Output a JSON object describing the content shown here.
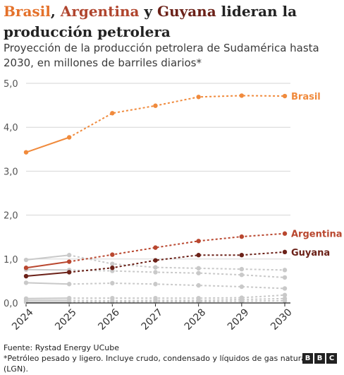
{
  "headline": {
    "parts": [
      {
        "text": "Brasil",
        "color": "#e4712a"
      },
      {
        "text": ", ",
        "color": "#222222"
      },
      {
        "text": "Argentina",
        "color": "#b0452e"
      },
      {
        "text": " y ",
        "color": "#222222"
      },
      {
        "text": "Guyana",
        "color": "#6b2118"
      },
      {
        "text": " lideran la producción petrolera",
        "color": "#222222"
      }
    ]
  },
  "subtitle": "Proyección de la producción petrolera de Sudamérica hasta 2030, en millones de barriles diarios*",
  "footer": {
    "source": "Fuente: Rystad Energy UCube",
    "note": "*Petróleo pesado y ligero. Incluye crudo, condensado y líquidos de gas natural (LGN).",
    "logo_letters": [
      "B",
      "B",
      "C"
    ]
  },
  "colors": {
    "brasil": "#f08a3c",
    "argentina": "#b9472f",
    "guyana": "#6b2118",
    "others": "#c9c9c9",
    "grid": "#d6d6d6",
    "axis": "#222222"
  },
  "chart_data": {
    "type": "line",
    "x": [
      2024,
      2025,
      2026,
      2027,
      2028,
      2029,
      2030
    ],
    "xlabel": "",
    "ylabel": "",
    "ylim": [
      0,
      5
    ],
    "yticks": [
      0,
      1,
      2,
      3,
      4,
      5
    ],
    "ytick_labels": [
      "0,0",
      "1,0",
      "2,0",
      "3,0",
      "4,0",
      "5,0"
    ],
    "xtick_labels": [
      "2024",
      "2025",
      "2026",
      "2027",
      "2028",
      "2029",
      "2030"
    ],
    "solid_until": 2025,
    "grid": true,
    "series": [
      {
        "name": "Brasil",
        "color": "#f08a3c",
        "values": [
          3.43,
          3.77,
          4.32,
          4.49,
          4.69,
          4.72,
          4.71
        ]
      },
      {
        "name": "Argentina",
        "color": "#b9472f",
        "values": [
          0.8,
          0.94,
          1.1,
          1.26,
          1.41,
          1.51,
          1.58
        ]
      },
      {
        "name": "Guyana",
        "color": "#6b2118",
        "values": [
          0.61,
          0.7,
          0.8,
          0.97,
          1.09,
          1.09,
          1.16
        ]
      },
      {
        "values": [
          0.98,
          1.09,
          0.89,
          0.81,
          0.79,
          0.77,
          0.75
        ]
      },
      {
        "values": [
          0.76,
          0.75,
          0.73,
          0.7,
          0.68,
          0.64,
          0.58
        ]
      },
      {
        "values": [
          0.46,
          0.43,
          0.45,
          0.43,
          0.4,
          0.37,
          0.33
        ]
      },
      {
        "values": [
          0.1,
          0.11,
          0.11,
          0.11,
          0.11,
          0.12,
          0.18
        ]
      },
      {
        "values": [
          0.06,
          0.06,
          0.05,
          0.06,
          0.06,
          0.08,
          0.1
        ]
      },
      {
        "values": [
          0.02,
          0.02,
          0.02,
          0.03,
          0.03,
          0.04,
          0.05
        ]
      }
    ]
  }
}
